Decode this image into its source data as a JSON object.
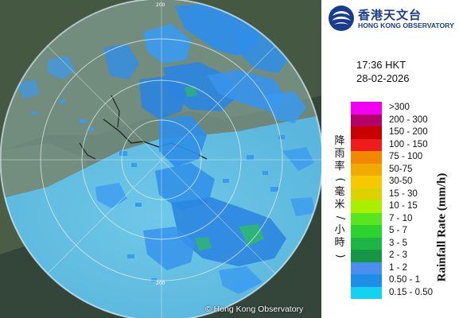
{
  "header": {
    "logo_name_cn": "香港天文台",
    "logo_name_en": "HONG KONG OBSERVATORY"
  },
  "timestamp": {
    "time": "17:36 HKT",
    "date": "28-02-2026"
  },
  "legend": {
    "title_cn": "降雨率(毫米/小時)",
    "title_en": "Rainfall Rate (mm/h)",
    "items": [
      {
        "label": ">300",
        "color": "#f200f2"
      },
      {
        "label": "200 - 300",
        "color": "#b4006c"
      },
      {
        "label": "150 - 200",
        "color": "#c80000"
      },
      {
        "label": "100 - 150",
        "color": "#f01c1c"
      },
      {
        "label": "75 - 100",
        "color": "#f28800"
      },
      {
        "label": "50-75",
        "color": "#f0aa00"
      },
      {
        "label": "30-50",
        "color": "#f5c800"
      },
      {
        "label": "15 - 30",
        "color": "#dcd200"
      },
      {
        "label": "10 - 15",
        "color": "#a8f000"
      },
      {
        "label": "7 - 10",
        "color": "#5ae61e"
      },
      {
        "label": "5 - 7",
        "color": "#2ed22e"
      },
      {
        "label": "3 - 5",
        "color": "#1eb446"
      },
      {
        "label": "2 - 3",
        "color": "#169646"
      },
      {
        "label": "1 - 2",
        "color": "#4a8ff0"
      },
      {
        "label": "0.50 - 1",
        "color": "#1e8ee6"
      },
      {
        "label": "0.15 - 0.50",
        "color": "#14d2f0"
      }
    ]
  },
  "map": {
    "range_ring_label": "200",
    "credit": "© Hong Kong Observatory"
  }
}
